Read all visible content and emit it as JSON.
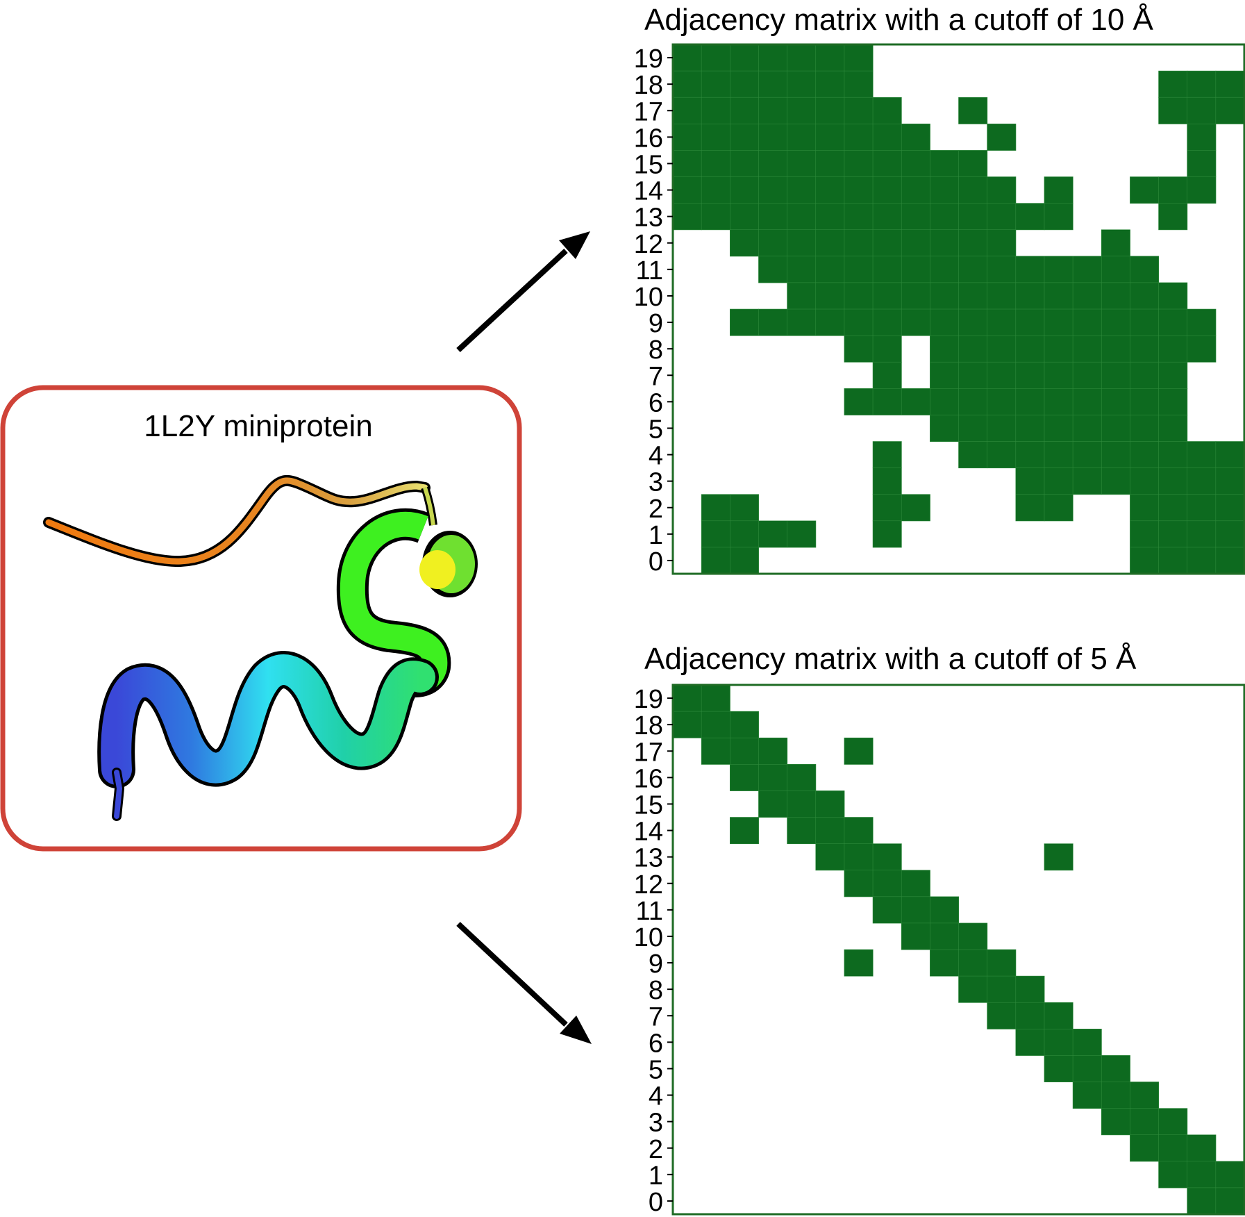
{
  "protein_panel": {
    "title": "1L2Y miniprotein",
    "border_color": "#cf4338"
  },
  "matrix_color": "#0d6a1f",
  "matrix_border_color": "#1e6b24",
  "matrices": [
    {
      "title": "Adjacency matrix with a cutoff of 10 Å",
      "row_labels": [
        "19",
        "18",
        "17",
        "16",
        "15",
        "14",
        "13",
        "12",
        "11",
        "10",
        "9",
        "8",
        "7",
        "6",
        "5",
        "4",
        "3",
        "2",
        "1",
        "0"
      ],
      "rows": [
        "11111110000000000000",
        "11111110000000000111",
        "11111111003000000111",
        "11111111100300000010",
        "11111111113000000010",
        "11111111111101001110",
        "11111111111111000100",
        "00111111111100010000",
        "00011111111111111000",
        "00001111111111111100",
        "00111111111111111110",
        "00000011011111111110",
        "00000001011111111100",
        "00000011111111111100",
        "00000000011111111100",
        "00000001001111111111",
        "00000001000011111111",
        "01100001100011001111",
        "01111001000000001111",
        "01100000000000001111"
      ]
    },
    {
      "title": "Adjacency matrix with a cutoff of 5 Å",
      "row_labels": [
        "19",
        "18",
        "17",
        "16",
        "15",
        "14",
        "13",
        "12",
        "11",
        "10",
        "9",
        "8",
        "7",
        "6",
        "5",
        "4",
        "3",
        "2",
        "1",
        "0"
      ],
      "rows": [
        "11000000000000000000",
        "11100000000000000000",
        "01110010000000000000",
        "00111000000000000000",
        "00011100000000000000",
        "00101110000000000000",
        "00000111000001000000",
        "00000011100000000000",
        "00000001110000000000",
        "00000000111000000000",
        "00000010011100000000",
        "00000000001110000000",
        "00000000000111000000",
        "00000000000011100000",
        "00000000000001110000",
        "00000000000000111000",
        "00000000000000011100",
        "00000000000000001110",
        "00000000000000000111",
        "00000000000000000011"
      ]
    }
  ]
}
